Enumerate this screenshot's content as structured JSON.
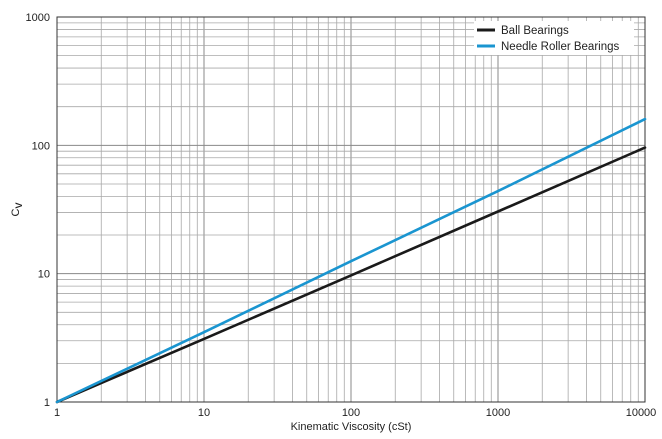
{
  "chart_data": {
    "type": "line",
    "title": "",
    "xlabel": "Kinematic Viscosity (cSt)",
    "ylabel": "C",
    "ylabel_subscript": "V",
    "x_scale": "log",
    "y_scale": "log",
    "xlim": [
      1,
      10000
    ],
    "ylim": [
      1,
      1000
    ],
    "x_ticks": [
      "1",
      "10",
      "100",
      "1000",
      "10000"
    ],
    "y_ticks": [
      "1",
      "10",
      "100",
      "1000"
    ],
    "grid": true,
    "legend_position": "top-right",
    "series": [
      {
        "name": "Ball Bearings",
        "color": "#1a1a1a",
        "x": [
          1,
          10,
          100,
          1000,
          10000
        ],
        "y": [
          1,
          3.1,
          9.7,
          30.5,
          96
        ]
      },
      {
        "name": "Needle Roller Bearings",
        "color": "#1a95d0",
        "x": [
          1,
          10,
          100,
          1000,
          10000
        ],
        "y": [
          1,
          3.5,
          12.5,
          44,
          160
        ]
      }
    ]
  }
}
